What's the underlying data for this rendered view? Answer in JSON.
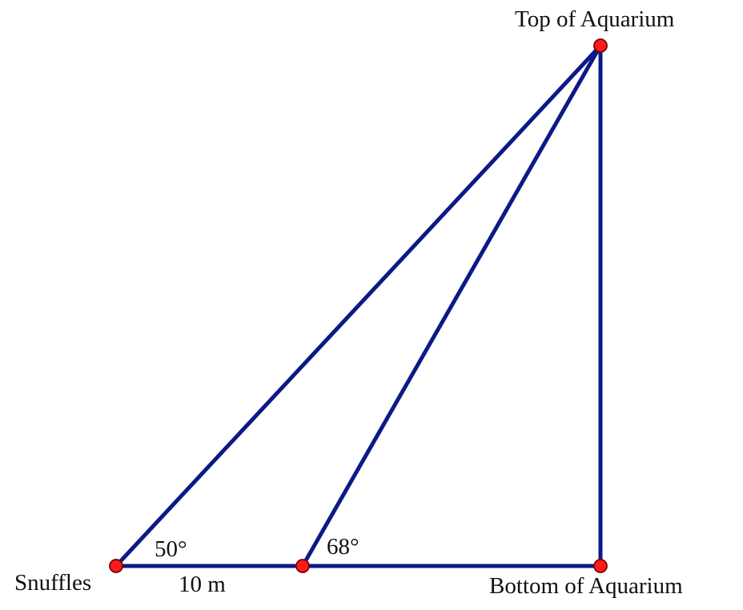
{
  "points": {
    "top": {
      "label": "Top of Aquarium"
    },
    "snuffles": {
      "label": "Snuffles"
    },
    "bottom": {
      "label": "Bottom of Aquarium"
    }
  },
  "angles": {
    "snuffles_angle": "50°",
    "middle_angle": "68°"
  },
  "measurements": {
    "base_distance": "10 m"
  },
  "colors": {
    "segment": "#0b1a86",
    "point_fill": "#ff1a1a",
    "point_stroke": "#7a0000"
  }
}
